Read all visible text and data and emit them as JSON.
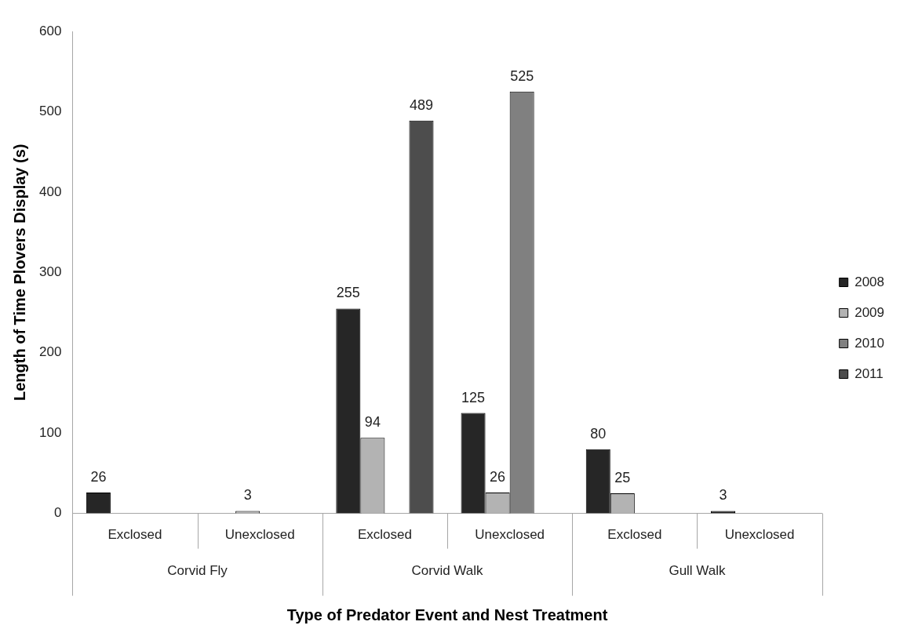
{
  "chart_data": {
    "type": "bar",
    "xlabel": "Type of Predator Event and Nest Treatment",
    "ylabel": "Length of Time Plovers Display (s)",
    "categories": [
      "Exclosed",
      "Unexclosed",
      "Exclosed",
      "Unexclosed",
      "Exclosed",
      "Unexclosed"
    ],
    "annotations": [
      "Corvid Fly",
      "Corvid Walk",
      "Gull Walk"
    ],
    "series": [
      {
        "name": "2008",
        "color": "#262626",
        "values": [
          26,
          null,
          255,
          125,
          80,
          3
        ]
      },
      {
        "name": "2009",
        "color": "#b3b3b3",
        "values": [
          null,
          3,
          94,
          26,
          25,
          null
        ]
      },
      {
        "name": "2010",
        "color": "#808080",
        "values": [
          null,
          null,
          null,
          525,
          null,
          null
        ]
      },
      {
        "name": "2011",
        "color": "#4d4d4d",
        "values": [
          null,
          null,
          489,
          null,
          null,
          null
        ]
      }
    ],
    "ylim": [
      0,
      600
    ],
    "yticks": [
      0,
      100,
      200,
      300,
      400,
      500,
      600
    ],
    "data_labels": true,
    "legend": "right"
  }
}
